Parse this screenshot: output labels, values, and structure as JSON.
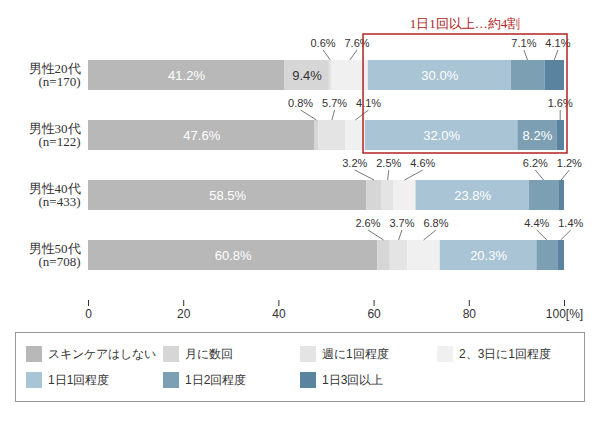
{
  "chart_data": {
    "type": "bar",
    "orientation": "horizontal",
    "stacked": true,
    "data_labels": true,
    "categories": [
      "男性20代\n(n=170)",
      "男性30代\n(n=122)",
      "男性40代\n(n=433)",
      "男性50代\n(n=708)"
    ],
    "series": [
      {
        "name": "スキンケアはしない",
        "color": "#b8b8b8",
        "values": [
          41.2,
          47.6,
          58.5,
          60.8
        ],
        "value_labels": [
          "41.2%",
          "47.6%",
          "58.5%",
          "60.8%"
        ]
      },
      {
        "name": "月に数回",
        "color": "#d6d6d6",
        "values": [
          9.4,
          0.8,
          3.2,
          2.6
        ],
        "value_labels": [
          "9.4%",
          "0.8%",
          "3.2%",
          "2.6%"
        ]
      },
      {
        "name": "週に1回程度",
        "color": "#e4e4e4",
        "values": [
          0.6,
          5.7,
          2.5,
          3.7
        ],
        "value_labels": [
          "0.6%",
          "5.7%",
          "2.5%",
          "3.7%"
        ]
      },
      {
        "name": "2、3日に1回程度",
        "color": "#f0f0f0",
        "values": [
          7.6,
          4.1,
          4.6,
          6.8
        ],
        "value_labels": [
          "7.6%",
          "4.1%",
          "4.6%",
          "6.8%"
        ]
      },
      {
        "name": "1日1回程度",
        "color": "#a9c4d5",
        "values": [
          30.0,
          32.0,
          23.8,
          20.3
        ],
        "value_labels": [
          "30.0%",
          "32.0%",
          "23.8%",
          "20.3%"
        ]
      },
      {
        "name": "1日2回程度",
        "color": "#7d9fb4",
        "values": [
          7.1,
          8.2,
          6.2,
          4.4
        ],
        "value_labels": [
          "7.1%",
          "8.2%",
          "6.2%",
          "4.4%"
        ]
      },
      {
        "name": "1日3回以上",
        "color": "#5a83a0",
        "values": [
          4.1,
          1.6,
          1.2,
          1.4
        ],
        "value_labels": [
          "4.1%",
          "1.6%",
          "1.2%",
          "1.4%"
        ]
      }
    ],
    "xlim": [
      0,
      100
    ],
    "xticks": [
      0,
      20,
      40,
      60,
      80,
      {
        "value": 100,
        "label": "100[%]"
      }
    ],
    "annotation": {
      "text": "1日1回以上…約4割",
      "color": "#b22222"
    },
    "legend": "bottom"
  }
}
